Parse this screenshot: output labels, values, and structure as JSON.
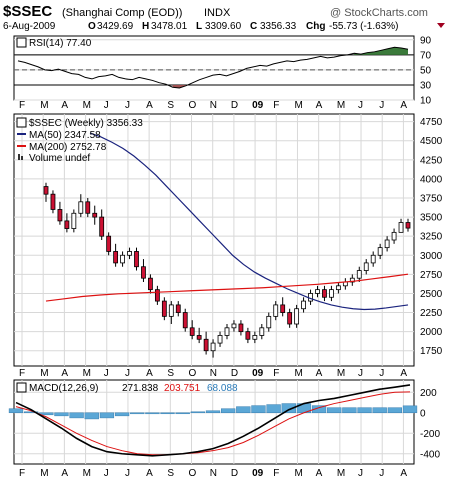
{
  "header": {
    "symbol": "$SSEC",
    "name": "(Shanghai Comp (EOD))",
    "exchange": "INDX",
    "watermark": "@ StockCharts.com",
    "date": "6-Aug-2009",
    "open_label": "O",
    "open": "3429.69",
    "high_label": "H",
    "high": "3478.01",
    "low_label": "L",
    "low": "3309.60",
    "close_label": "C",
    "close": "3356.33",
    "chg_label": "Chg",
    "chg": "-55.73 (-1.63%)"
  },
  "colors": {
    "up": "#ffffff",
    "down": "#cc1133",
    "ma50": "#1a237e",
    "ma200": "#dd1111",
    "rsi_fill_high": "#3b7a3b",
    "rsi_fill_low": "#a05050",
    "macd_hist": "#5ba7d6",
    "macd_line": "#000000",
    "signal_line": "#dd1111",
    "grid": "#d8d8d8"
  },
  "chart_data": [
    {
      "type": "line",
      "panel": "rsi",
      "legend": "RSI(14) 77.40",
      "ylim": [
        10,
        95
      ],
      "yticks": [
        90,
        70,
        50,
        30,
        10
      ],
      "reference_levels": [
        70,
        30
      ],
      "series": [
        {
          "name": "RSI(14)",
          "values": [
            62,
            60,
            57,
            54,
            50,
            49,
            51,
            48,
            45,
            44,
            40,
            38,
            41,
            42,
            44,
            40,
            38,
            37,
            40,
            38,
            36,
            33,
            31,
            27,
            26,
            29,
            33,
            37,
            40,
            43,
            44,
            42,
            45,
            48,
            52,
            54,
            56,
            55,
            58,
            60,
            62,
            61,
            63,
            64,
            66,
            68,
            66,
            67,
            69,
            70,
            72,
            71,
            73,
            74,
            76,
            78,
            80,
            79,
            77.4
          ]
        }
      ]
    },
    {
      "type": "candlestick",
      "panel": "price",
      "legend": [
        "$SSEC (Weekly) 3356.33",
        "MA(50) 2347.58",
        "MA(200) 2752.78",
        "Volume undef"
      ],
      "ylim": [
        1550,
        4850
      ],
      "yticks": [
        4750,
        4500,
        4250,
        4000,
        3750,
        3500,
        3250,
        3000,
        2750,
        2500,
        2250,
        2000,
        1750
      ],
      "x_labels": [
        "F",
        "M",
        "A",
        "M",
        "J",
        "J",
        "A",
        "S",
        "O",
        "N",
        "D",
        "09",
        "F",
        "M",
        "A",
        "M",
        "J",
        "J",
        "A"
      ],
      "ohlc": [
        [
          3900,
          3950,
          3700,
          3800
        ],
        [
          3800,
          3850,
          3550,
          3600
        ],
        [
          3600,
          3700,
          3400,
          3450
        ],
        [
          3450,
          3550,
          3300,
          3350
        ],
        [
          3350,
          3600,
          3300,
          3550
        ],
        [
          3550,
          3800,
          3500,
          3700
        ],
        [
          3700,
          3750,
          3500,
          3550
        ],
        [
          3550,
          3650,
          3400,
          3500
        ],
        [
          3500,
          3600,
          3200,
          3250
        ],
        [
          3250,
          3300,
          3000,
          3050
        ],
        [
          3050,
          3150,
          2850,
          2900
        ],
        [
          2900,
          3050,
          2850,
          3000
        ],
        [
          3000,
          3100,
          2950,
          3050
        ],
        [
          3050,
          3100,
          2800,
          2850
        ],
        [
          2850,
          2950,
          2650,
          2700
        ],
        [
          2700,
          2750,
          2500,
          2550
        ],
        [
          2550,
          2600,
          2350,
          2400
        ],
        [
          2400,
          2450,
          2150,
          2200
        ],
        [
          2200,
          2400,
          2100,
          2350
        ],
        [
          2350,
          2400,
          2200,
          2250
        ],
        [
          2250,
          2300,
          2000,
          2050
        ],
        [
          2050,
          2150,
          1900,
          1950
        ],
        [
          1950,
          2050,
          1850,
          1900
        ],
        [
          1900,
          2000,
          1700,
          1750
        ],
        [
          1750,
          1900,
          1660,
          1850
        ],
        [
          1850,
          2000,
          1800,
          1950
        ],
        [
          1950,
          2100,
          1900,
          2050
        ],
        [
          2050,
          2150,
          2000,
          2100
        ],
        [
          2100,
          2150,
          1950,
          2000
        ],
        [
          2000,
          2050,
          1850,
          1900
        ],
        [
          1900,
          2000,
          1850,
          1950
        ],
        [
          1950,
          2100,
          1900,
          2050
        ],
        [
          2050,
          2250,
          2000,
          2200
        ],
        [
          2200,
          2400,
          2150,
          2350
        ],
        [
          2350,
          2450,
          2200,
          2250
        ],
        [
          2250,
          2300,
          2050,
          2100
        ],
        [
          2100,
          2350,
          2050,
          2300
        ],
        [
          2300,
          2450,
          2250,
          2400
        ],
        [
          2400,
          2550,
          2350,
          2500
        ],
        [
          2500,
          2600,
          2450,
          2550
        ],
        [
          2550,
          2600,
          2400,
          2450
        ],
        [
          2450,
          2600,
          2400,
          2550
        ],
        [
          2550,
          2650,
          2500,
          2600
        ],
        [
          2600,
          2700,
          2550,
          2650
        ],
        [
          2650,
          2750,
          2600,
          2700
        ],
        [
          2700,
          2850,
          2650,
          2800
        ],
        [
          2800,
          2950,
          2750,
          2900
        ],
        [
          2900,
          3050,
          2850,
          3000
        ],
        [
          3000,
          3150,
          2950,
          3100
        ],
        [
          3100,
          3250,
          3050,
          3200
        ],
        [
          3200,
          3350,
          3150,
          3300
        ],
        [
          3300,
          3478,
          3300,
          3429
        ],
        [
          3429,
          3478,
          3310,
          3356
        ]
      ],
      "ma50": [
        4600,
        4550,
        4480,
        4400,
        4300,
        4180,
        4050,
        3900,
        3750,
        3600,
        3450,
        3300,
        3150,
        3000,
        2880,
        2780,
        2700,
        2630,
        2560,
        2500,
        2440,
        2390,
        2350,
        2320,
        2300,
        2290,
        2295,
        2310,
        2330,
        2350
      ],
      "ma200": [
        2400,
        2430,
        2460,
        2480,
        2495,
        2505,
        2515,
        2525,
        2535,
        2545,
        2555,
        2565,
        2575,
        2590,
        2605,
        2620,
        2640,
        2660,
        2690,
        2720,
        2752
      ]
    },
    {
      "type": "line",
      "panel": "macd",
      "legend": [
        "MACD(12,26,9)",
        "271.838",
        "203.751",
        "68.088"
      ],
      "ylim": [
        -500,
        320
      ],
      "yticks": [
        200,
        0,
        -200,
        -400
      ],
      "x_labels": [
        "F",
        "M",
        "A",
        "M",
        "J",
        "J",
        "A",
        "S",
        "O",
        "N",
        "D",
        "09",
        "F",
        "M",
        "A",
        "M",
        "J",
        "J",
        "A"
      ],
      "series": [
        {
          "name": "MACD",
          "values": [
            100,
            30,
            -60,
            -150,
            -250,
            -330,
            -380,
            -400,
            -410,
            -420,
            -410,
            -400,
            -380,
            -350,
            -300,
            -230,
            -150,
            -60,
            30,
            90,
            120,
            140,
            170,
            200,
            230,
            250,
            272
          ]
        },
        {
          "name": "Signal",
          "values": [
            60,
            20,
            -40,
            -120,
            -200,
            -270,
            -330,
            -370,
            -400,
            -410,
            -410,
            -400,
            -390,
            -370,
            -340,
            -290,
            -220,
            -140,
            -60,
            0,
            50,
            90,
            120,
            150,
            180,
            200,
            204
          ]
        },
        {
          "name": "Histogram",
          "values": [
            40,
            10,
            -20,
            -30,
            -50,
            -60,
            -50,
            -30,
            -10,
            -10,
            0,
            0,
            10,
            20,
            40,
            60,
            70,
            80,
            90,
            90,
            70,
            50,
            50,
            50,
            50,
            50,
            68
          ]
        }
      ]
    }
  ]
}
